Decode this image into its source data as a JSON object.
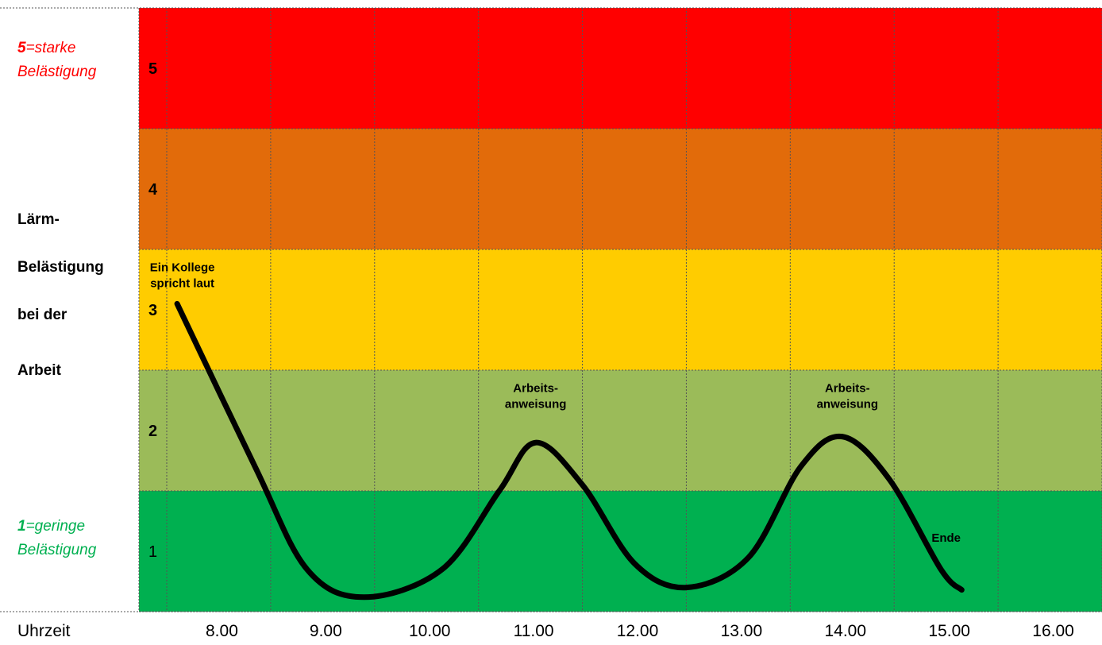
{
  "legend": {
    "high_num": "5",
    "high_text": "=starke Belästigung",
    "low_num": "1",
    "low_text": "=geringe Belästigung",
    "high_color": "#ff0000",
    "low_color": "#00b050"
  },
  "ylabel_lines": [
    "Lärm-",
    "Belästigung",
    "bei der",
    "Arbeit"
  ],
  "xlabel": "Uhrzeit",
  "chart_data": {
    "type": "line",
    "title": "",
    "xlabel": "Uhrzeit",
    "ylabel": "Lärm-Belästigung bei der Arbeit",
    "categories": [
      "8.00",
      "9.00",
      "10.00",
      "11.00",
      "12.00",
      "13.00",
      "14.00",
      "15.00",
      "16.00"
    ],
    "ylim": [
      0.5,
      5.5
    ],
    "bands": [
      {
        "level": 5,
        "label": "5",
        "color": "#ff0000",
        "bold": true
      },
      {
        "level": 4,
        "label": "4",
        "color": "#e26b0a",
        "bold": true
      },
      {
        "level": 3,
        "label": "3",
        "color": "#ffcc00",
        "bold": true
      },
      {
        "level": 2,
        "label": "2",
        "color": "#9bbb59",
        "bold": true
      },
      {
        "level": 1,
        "label": "1",
        "color": "#00b050",
        "bold": false
      }
    ],
    "series": [
      {
        "color": "#000000",
        "points": [
          {
            "x": 7.6,
            "y": 3.05
          },
          {
            "x": 8.35,
            "y": 1.7
          },
          {
            "x": 8.85,
            "y": 0.85
          },
          {
            "x": 9.4,
            "y": 0.62
          },
          {
            "x": 10.15,
            "y": 0.85
          },
          {
            "x": 10.7,
            "y": 1.5
          },
          {
            "x": 11.05,
            "y": 1.9
          },
          {
            "x": 11.5,
            "y": 1.55
          },
          {
            "x": 12.0,
            "y": 0.9
          },
          {
            "x": 12.5,
            "y": 0.7
          },
          {
            "x": 13.1,
            "y": 0.95
          },
          {
            "x": 13.6,
            "y": 1.7
          },
          {
            "x": 14.0,
            "y": 1.95
          },
          {
            "x": 14.45,
            "y": 1.6
          },
          {
            "x": 14.95,
            "y": 0.85
          },
          {
            "x": 15.15,
            "y": 0.68
          }
        ]
      }
    ],
    "annotations": [
      {
        "text": "Ein Kollege spricht laut",
        "x": 7.65,
        "y": 3.32
      },
      {
        "text": "Arbeits- anweisung",
        "x": 11.05,
        "y": 2.32
      },
      {
        "text": "Arbeits- anweisung",
        "x": 14.05,
        "y": 2.32
      },
      {
        "text": "Ende",
        "x": 15.0,
        "y": 1.08
      }
    ],
    "grid": true
  }
}
